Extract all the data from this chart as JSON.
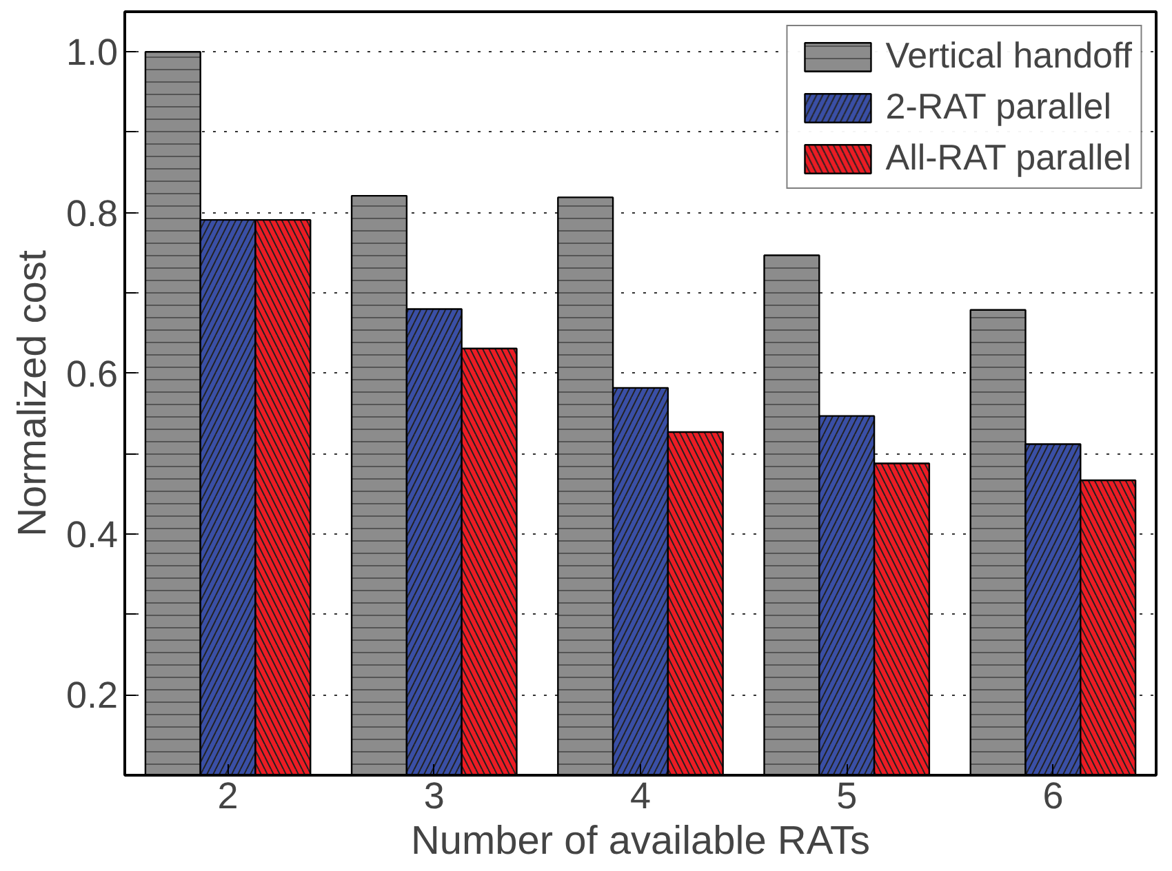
{
  "chart_data": {
    "type": "bar",
    "xlabel": "Number of available RATs",
    "ylabel": "Normalized cost",
    "categories": [
      "2",
      "3",
      "4",
      "5",
      "6"
    ],
    "series": [
      {
        "name": "Vertical handoff",
        "color": "#8c8c8c",
        "values": [
          1.0,
          0.821,
          0.819,
          0.747,
          0.679
        ]
      },
      {
        "name": "2-RAT parallel",
        "color": "#3a4fa6",
        "values": [
          0.791,
          0.68,
          0.582,
          0.547,
          0.512
        ]
      },
      {
        "name": "All-RAT parallel",
        "color": "#ec1c24",
        "values": [
          0.791,
          0.631,
          0.527,
          0.488,
          0.467
        ]
      }
    ],
    "ylim": [
      0.1,
      1.05
    ],
    "yticks": [
      0.2,
      {
        "value": 0.3,
        "label": null
      },
      0.4,
      {
        "value": 0.5,
        "label": null
      },
      0.6,
      {
        "value": 0.7,
        "label": null
      },
      0.8,
      {
        "value": 0.9,
        "label": null
      },
      {
        "value": 1.0,
        "label": "1.0"
      }
    ],
    "grid": "y",
    "legend": "top right"
  }
}
